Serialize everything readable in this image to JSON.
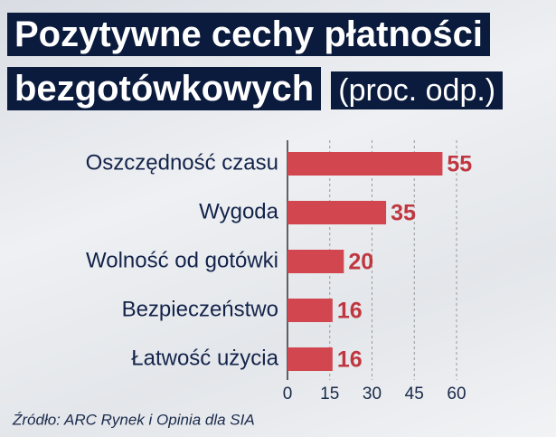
{
  "chart_data": {
    "type": "barh",
    "title": "Pozytywne cechy płatności bezgotówkowych",
    "subtitle": "(proc. odp.)",
    "categories": [
      "Oszczędność czasu",
      "Wygoda",
      "Wolność od gotówki",
      "Bezpieczeństwo",
      "Łatwość użycia"
    ],
    "values": [
      55,
      35,
      20,
      16,
      16
    ],
    "color": "#d2474f",
    "xlim": [
      0,
      60
    ],
    "xticks": [
      0,
      15,
      30,
      45,
      60
    ],
    "grid": true,
    "source": "Źródło: ARC Rynek i Opinia dla SIA"
  }
}
